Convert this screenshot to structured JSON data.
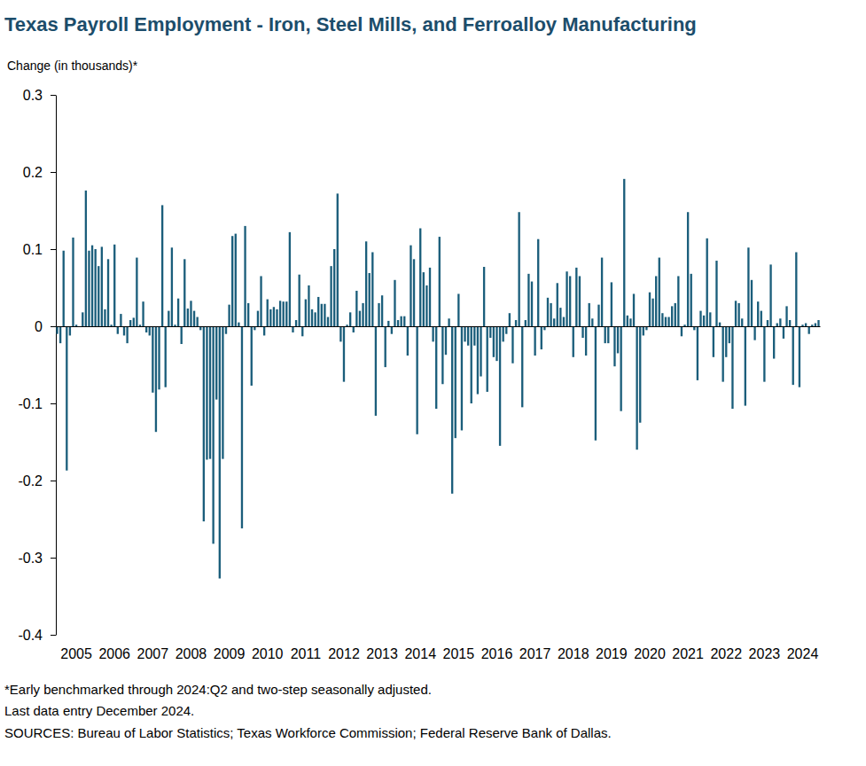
{
  "chart_data": {
    "type": "bar",
    "title": "Texas Payroll Employment - Iron, Steel Mills, and Ferroalloy Manufacturing",
    "ylabel": "Change (in thousands)*",
    "notes": [
      "*Early benchmarked through 2024:Q2 and two-step seasonally adjusted.",
      "Last data entry December 2024.",
      "SOURCES:  Bureau of Labor Statistics; Texas Workforce Commission;  Federal Reserve Bank of Dallas."
    ],
    "color": "#1b5e7b",
    "grid": false,
    "ylim": [
      -0.4,
      0.3
    ],
    "yticks": [
      -0.4,
      -0.3,
      -0.2,
      -0.1,
      0,
      0.1,
      0.2,
      0.3
    ],
    "categories": [
      null,
      null,
      null,
      null,
      null,
      null,
      "2005",
      null,
      null,
      null,
      null,
      null,
      null,
      null,
      null,
      null,
      null,
      null,
      "2006",
      null,
      null,
      null,
      null,
      null,
      null,
      null,
      null,
      null,
      null,
      null,
      "2007",
      null,
      null,
      null,
      null,
      null,
      null,
      null,
      null,
      null,
      null,
      null,
      "2008",
      null,
      null,
      null,
      null,
      null,
      null,
      null,
      null,
      null,
      null,
      null,
      "2009",
      null,
      null,
      null,
      null,
      null,
      null,
      null,
      null,
      null,
      null,
      null,
      "2010",
      null,
      null,
      null,
      null,
      null,
      null,
      null,
      null,
      null,
      null,
      null,
      "2011",
      null,
      null,
      null,
      null,
      null,
      null,
      null,
      null,
      null,
      null,
      null,
      "2012",
      null,
      null,
      null,
      null,
      null,
      null,
      null,
      null,
      null,
      null,
      null,
      "2013",
      null,
      null,
      null,
      null,
      null,
      null,
      null,
      null,
      null,
      null,
      null,
      "2014",
      null,
      null,
      null,
      null,
      null,
      null,
      null,
      null,
      null,
      null,
      null,
      "2015",
      null,
      null,
      null,
      null,
      null,
      null,
      null,
      null,
      null,
      null,
      null,
      "2016",
      null,
      null,
      null,
      null,
      null,
      null,
      null,
      null,
      null,
      null,
      null,
      "2017",
      null,
      null,
      null,
      null,
      null,
      null,
      null,
      null,
      null,
      null,
      null,
      "2018",
      null,
      null,
      null,
      null,
      null,
      null,
      null,
      null,
      null,
      null,
      null,
      "2019",
      null,
      null,
      null,
      null,
      null,
      null,
      null,
      null,
      null,
      null,
      null,
      "2020",
      null,
      null,
      null,
      null,
      null,
      null,
      null,
      null,
      null,
      null,
      null,
      "2021",
      null,
      null,
      null,
      null,
      null,
      null,
      null,
      null,
      null,
      null,
      null,
      "2022",
      null,
      null,
      null,
      null,
      null,
      null,
      null,
      null,
      null,
      null,
      null,
      "2023",
      null,
      null,
      null,
      null,
      null,
      null,
      null,
      null,
      null,
      null,
      null,
      "2024",
      null,
      null,
      null,
      null,
      null
    ],
    "values": [
      -0.01,
      -0.022,
      0.098,
      -0.187,
      -0.012,
      0.115,
      0.002,
      0,
      0.018,
      0.176,
      0.098,
      0.105,
      0.1,
      0.078,
      0.103,
      0.022,
      0.087,
      0.002,
      0.106,
      -0.01,
      0.016,
      -0.012,
      -0.022,
      0.008,
      0.011,
      0.089,
      0.002,
      0.032,
      -0.008,
      -0.012,
      -0.086,
      -0.137,
      -0.082,
      0.157,
      -0.079,
      0.02,
      0.102,
      0.002,
      0.036,
      -0.023,
      0.087,
      0.023,
      0.033,
      0.02,
      0.012,
      -0.005,
      -0.253,
      -0.173,
      -0.172,
      -0.282,
      -0.095,
      -0.327,
      -0.172,
      -0.01,
      0.028,
      0.117,
      0.12,
      0.005,
      -0.262,
      0.13,
      0.03,
      -0.077,
      -0.005,
      0.02,
      0.065,
      -0.012,
      0.035,
      0.022,
      0.025,
      0.022,
      0.033,
      0.032,
      0.032,
      0.122,
      -0.008,
      0.008,
      0.067,
      -0.013,
      0.035,
      0.053,
      0.022,
      0.018,
      0.038,
      0.029,
      0.029,
      0.012,
      0.078,
      0.1,
      0.172,
      -0.02,
      -0.072,
      0.002,
      0.018,
      -0.008,
      0.046,
      0.02,
      0.03,
      0.11,
      0.069,
      0.096,
      -0.116,
      0.03,
      0.04,
      -0.053,
      0.007,
      -0.01,
      0.06,
      0.008,
      0.013,
      0.013,
      -0.038,
      0.105,
      0.087,
      -0.14,
      0.127,
      0.07,
      0.053,
      0.076,
      -0.02,
      -0.107,
      0.116,
      -0.075,
      -0.037,
      0.01,
      -0.217,
      -0.145,
      0.042,
      -0.135,
      -0.02,
      -0.025,
      -0.1,
      -0.025,
      -0.088,
      -0.065,
      0.077,
      -0.085,
      -0.015,
      -0.04,
      -0.045,
      -0.155,
      -0.02,
      -0.01,
      0.017,
      -0.048,
      0.008,
      0.148,
      -0.105,
      0.008,
      0.068,
      0.058,
      -0.038,
      0.113,
      -0.03,
      -0.005,
      0.037,
      0.03,
      0.01,
      0.056,
      0.024,
      0.012,
      0.071,
      0.065,
      -0.04,
      0.076,
      0.065,
      -0.015,
      -0.038,
      0.03,
      0.01,
      -0.148,
      0.028,
      0.089,
      -0.022,
      -0.022,
      0.057,
      -0.052,
      -0.035,
      -0.11,
      0.191,
      0.014,
      0.01,
      0.042,
      -0.16,
      -0.125,
      -0.012,
      -0.005,
      0.044,
      0.036,
      0.065,
      0.089,
      0.017,
      0.012,
      0.012,
      0.026,
      0.03,
      0.065,
      -0.013,
      0.002,
      0.148,
      0.068,
      -0.005,
      -0.07,
      0.02,
      0.014,
      0.114,
      0.018,
      -0.04,
      0.085,
      0.005,
      -0.072,
      -0.04,
      -0.022,
      -0.107,
      0.033,
      0.03,
      0.01,
      -0.103,
      0.102,
      0.06,
      -0.018,
      0.032,
      0.02,
      -0.072,
      0.008,
      0.08,
      -0.042,
      0.004,
      0.01,
      -0.016,
      0.026,
      0.008,
      -0.076,
      0.096,
      -0.079,
      0.002,
      0.004,
      -0.01,
      0.002,
      0.004,
      0.008
    ]
  }
}
